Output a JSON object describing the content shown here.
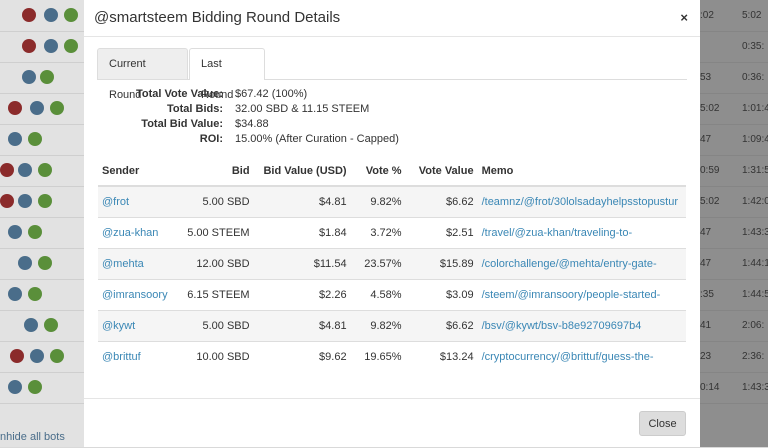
{
  "background": {
    "times": [
      "5:02",
      "0:35:",
      "0:36:",
      "1:01:4",
      "1:09:4",
      "1:31:5",
      "1:42:0",
      "1:43:3",
      "1:44:1",
      "1:44:5",
      "2:06:",
      "2:36:",
      "1:43:3"
    ],
    "times_left": [
      ":02",
      "",
      "53",
      "5:02",
      "47",
      "0:59",
      "5:02",
      "47",
      "47",
      ":35",
      "41",
      "23",
      "0:14"
    ],
    "unhide_link": "nhide all bots"
  },
  "modal": {
    "title": "@smartsteem Bidding Round Details",
    "close_icon": "×",
    "tabs": [
      {
        "label": "Current Round",
        "active": false
      },
      {
        "label": "Last Round",
        "active": true
      }
    ],
    "summary": [
      {
        "label": "Total Vote Value:",
        "value": "$67.42 (100%)"
      },
      {
        "label": "Total Bids:",
        "value": "32.00 SBD & 11.15 STEEM"
      },
      {
        "label": "Total Bid Value:",
        "value": "$34.88"
      },
      {
        "label": "ROI:",
        "value": "15.00% (After Curation - Capped)"
      }
    ],
    "table": {
      "headers": [
        "Sender",
        "Bid",
        "Bid Value (USD)",
        "Vote %",
        "Vote Value",
        "Memo"
      ],
      "rows": [
        {
          "sender": "@frot",
          "bid": "5.00 SBD",
          "bid_value": "$4.81",
          "vote_pct": "9.82%",
          "vote_value": "$6.62",
          "memo": "/teamnz/@frot/30lolsadayhelpsstopustur"
        },
        {
          "sender": "@zua-khan",
          "bid": "5.00 STEEM",
          "bid_value": "$1.84",
          "vote_pct": "3.72%",
          "vote_value": "$2.51",
          "memo": "/travel/@zua-khan/traveling-to-"
        },
        {
          "sender": "@mehta",
          "bid": "12.00 SBD",
          "bid_value": "$11.54",
          "vote_pct": "23.57%",
          "vote_value": "$15.89",
          "memo": "/colorchallenge/@mehta/entry-gate-"
        },
        {
          "sender": "@imransoory",
          "bid": "6.15 STEEM",
          "bid_value": "$2.26",
          "vote_pct": "4.58%",
          "vote_value": "$3.09",
          "memo": "/steem/@imransoory/people-started-"
        },
        {
          "sender": "@kywt",
          "bid": "5.00 SBD",
          "bid_value": "$4.81",
          "vote_pct": "9.82%",
          "vote_value": "$6.62",
          "memo": "/bsv/@kywt/bsv-b8e92709697b4"
        },
        {
          "sender": "@brittuf",
          "bid": "10.00 SBD",
          "bid_value": "$9.62",
          "vote_pct": "19.65%",
          "vote_value": "$13.24",
          "memo": "/cryptocurrency/@brittuf/guess-the-"
        }
      ]
    },
    "footer": {
      "close_label": "Close"
    }
  },
  "colors": {
    "link": "#3a87b5",
    "row_stripe": "#f5f5f5",
    "backdrop": "#8e8e8e"
  }
}
